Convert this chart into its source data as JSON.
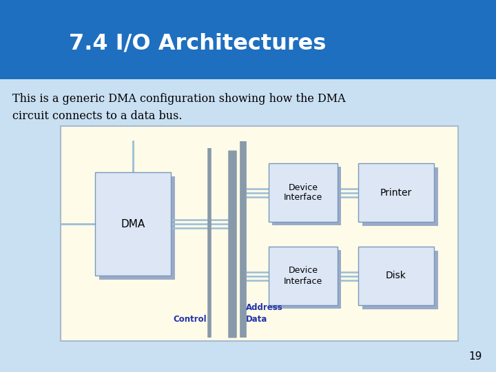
{
  "title": "7.4 I/O Architectures",
  "subtitle": "This is a generic DMA configuration showing how the DMA\ncircuit connects to a data bus.",
  "title_bg": "#1E6FBF",
  "slide_bg": "#C9DFF2",
  "diagram_bg": "#FEFBE8",
  "page_number": "19",
  "box_fill": "#DCE6F5",
  "box_edge": "#7799BB",
  "shadow_color": "#9BAAC8",
  "bus_label_color": "#2233AA",
  "bus_line_color": "#9BBDD6",
  "vert_bus_color": "#8899AA"
}
